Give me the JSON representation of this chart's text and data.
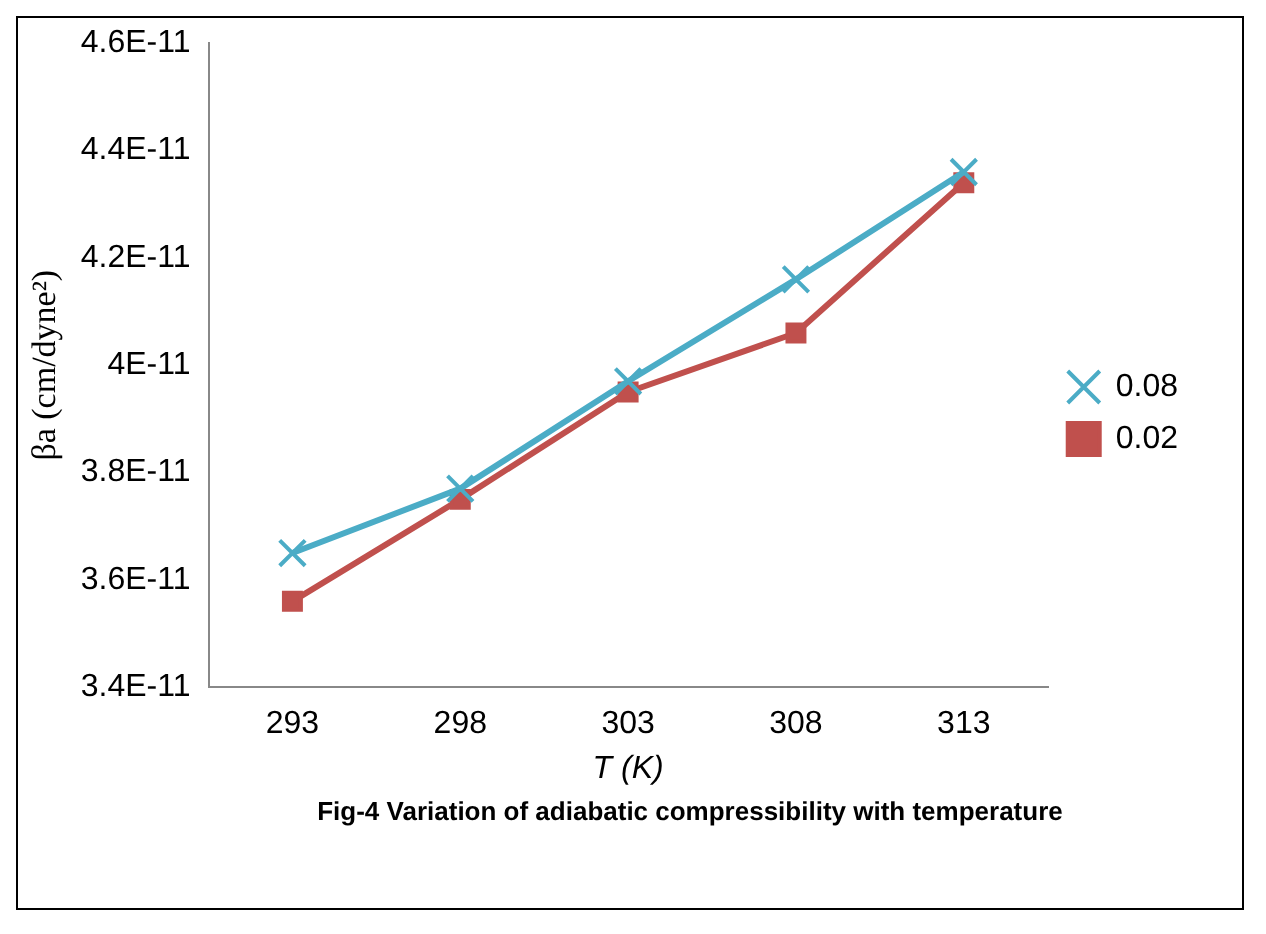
{
  "chart_data": {
    "type": "line",
    "title": "Fig-4 Variation of adiabatic compressibility with temperature",
    "xlabel": "T (K)",
    "ylabel": "βa (cm/dyne²)",
    "categories": [
      "293",
      "298",
      "303",
      "308",
      "313"
    ],
    "series": [
      {
        "name": "0.02",
        "color": "#c0504d",
        "marker": "square",
        "values": [
          3.56e-11,
          3.75e-11,
          3.95e-11,
          4.06e-11,
          4.34e-11
        ]
      },
      {
        "name": "0.08",
        "color": "#4bacc6",
        "marker": "cross",
        "values": [
          3.65e-11,
          3.77e-11,
          3.97e-11,
          4.16e-11,
          4.36e-11
        ]
      }
    ],
    "ylim": [
      3.4e-11,
      4.6e-11
    ],
    "yticks": [
      {
        "value": 3.4e-11,
        "label": "3.4E-11"
      },
      {
        "value": 3.6e-11,
        "label": "3.6E-11"
      },
      {
        "value": 3.8e-11,
        "label": "3.8E-11"
      },
      {
        "value": 4e-11,
        "label": "4E-11"
      },
      {
        "value": 4.2e-11,
        "label": "4.2E-11"
      },
      {
        "value": 4.4e-11,
        "label": "4.4E-11"
      },
      {
        "value": 4.6e-11,
        "label": "4.6E-11"
      }
    ],
    "grid": false,
    "legend": "right",
    "line_style": "solid"
  }
}
